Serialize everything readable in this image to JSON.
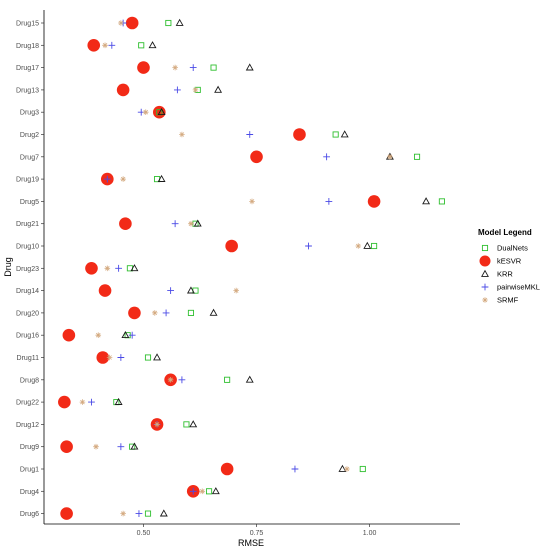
{
  "colors": {
    "DualNets": "#2fbf2f",
    "kESVR": "#f22a17",
    "KRR": "#1a1a1a",
    "pairwiseMKL": "#4a4ae6",
    "SRMF": "#d4aa80"
  },
  "chart_data": {
    "type": "scatter",
    "xlabel": "RMSE",
    "ylabel": "Drug",
    "xlim": [
      0.28,
      1.2
    ],
    "x_ticks": [
      "0.50",
      "0.75",
      "1.00"
    ],
    "x_tick_values": [
      0.5,
      0.75,
      1.0
    ],
    "grid": false,
    "legend": {
      "title": "Model Legend",
      "placement": "right",
      "entries": [
        "DualNets",
        "kESVR",
        "KRR",
        "pairwiseMKL",
        "SRMF"
      ]
    },
    "categories": [
      "Drug15",
      "Drug18",
      "Drug17",
      "Drug13",
      "Drug3",
      "Drug2",
      "Drug7",
      "Drug19",
      "Drug5",
      "Drug21",
      "Drug10",
      "Drug23",
      "Drug14",
      "Drug20",
      "Drug16",
      "Drug11",
      "Drug8",
      "Drug22",
      "Drug12",
      "Drug9",
      "Drug1",
      "Drug4",
      "Drug6"
    ],
    "series": [
      {
        "name": "DualNets",
        "marker": "square",
        "values": [
          0.555,
          0.495,
          0.655,
          0.62,
          0.535,
          0.925,
          1.105,
          0.53,
          1.16,
          0.615,
          1.01,
          0.47,
          0.615,
          0.605,
          0.465,
          0.51,
          0.685,
          0.44,
          0.595,
          0.475,
          0.985,
          0.645,
          0.51
        ]
      },
      {
        "name": "kESVR",
        "marker": "circle",
        "values": [
          0.475,
          0.39,
          0.5,
          0.455,
          0.535,
          0.845,
          0.75,
          0.42,
          1.01,
          0.46,
          0.695,
          0.385,
          0.415,
          0.48,
          0.335,
          0.41,
          0.56,
          0.325,
          0.53,
          0.33,
          0.685,
          0.61,
          0.33
        ]
      },
      {
        "name": "KRR",
        "marker": "triangle",
        "values": [
          0.58,
          0.52,
          0.735,
          0.665,
          0.54,
          0.945,
          1.045,
          0.54,
          1.125,
          0.62,
          0.995,
          0.48,
          0.605,
          0.655,
          0.46,
          0.53,
          0.735,
          0.445,
          0.61,
          0.48,
          0.94,
          0.66,
          0.545
        ]
      },
      {
        "name": "pairwiseMKL",
        "marker": "plus",
        "values": [
          0.455,
          0.43,
          0.61,
          0.575,
          0.495,
          0.735,
          0.905,
          0.42,
          0.91,
          0.57,
          0.865,
          0.445,
          0.56,
          0.55,
          0.475,
          0.45,
          0.585,
          0.385,
          0.53,
          0.45,
          0.835,
          0.61,
          0.49
        ]
      },
      {
        "name": "SRMF",
        "marker": "asterisk",
        "values": [
          0.45,
          0.415,
          0.57,
          0.615,
          0.505,
          0.585,
          1.045,
          0.455,
          0.74,
          0.605,
          0.975,
          0.42,
          0.705,
          0.525,
          0.4,
          0.425,
          0.56,
          0.365,
          0.53,
          0.395,
          0.95,
          0.63,
          0.455
        ]
      }
    ]
  }
}
